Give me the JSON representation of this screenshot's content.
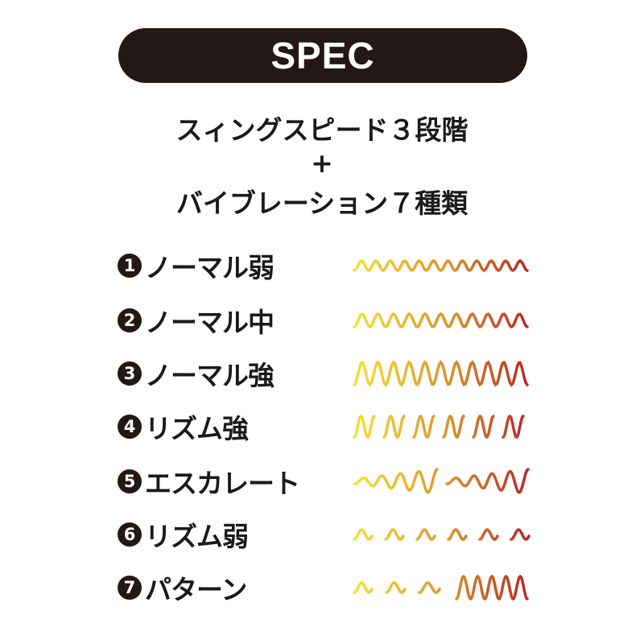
{
  "header": {
    "title": "SPEC"
  },
  "headline": {
    "line1": "スィングスピード３段階",
    "plus": "+",
    "line2": "バイブレーション７種類"
  },
  "modes": [
    {
      "number": "1",
      "label": "ノーマル弱"
    },
    {
      "number": "2",
      "label": "ノーマル中"
    },
    {
      "number": "3",
      "label": "ノーマル強"
    },
    {
      "number": "4",
      "label": "リズム強"
    },
    {
      "number": "5",
      "label": "エスカレート"
    },
    {
      "number": "6",
      "label": "リズム弱"
    },
    {
      "number": "7",
      "label": "パターン"
    }
  ],
  "colors": {
    "pill": "#231815",
    "wave_start": "#f2e23a",
    "wave_mid": "#d9922a",
    "wave_end": "#b8282a"
  }
}
